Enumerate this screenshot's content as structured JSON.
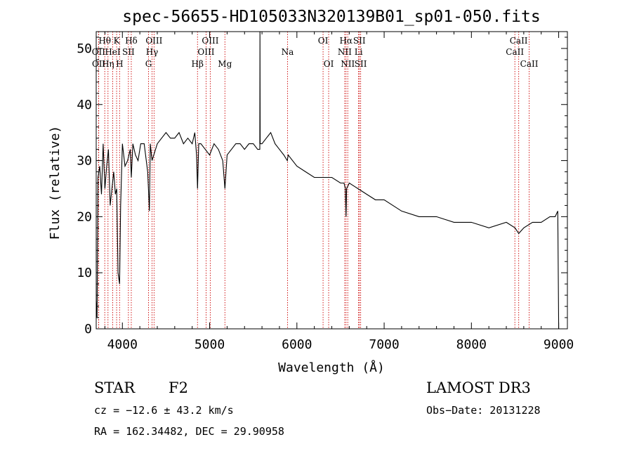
{
  "chart_data": {
    "type": "line",
    "title": "spec-56655-HD105033N320139B01_sp01-050.fits",
    "xlabel": "Wavelength (Å)",
    "ylabel": "Flux (relative)",
    "xlim": [
      3700,
      9100
    ],
    "ylim": [
      0,
      53
    ],
    "xticks": [
      4000,
      5000,
      6000,
      7000,
      8000,
      9000
    ],
    "yticks": [
      0,
      10,
      20,
      30,
      40,
      50
    ],
    "series": [
      {
        "name": "flux",
        "x": [
          3700,
          3710,
          3720,
          3740,
          3760,
          3780,
          3800,
          3820,
          3840,
          3860,
          3880,
          3900,
          3920,
          3935,
          3950,
          3968,
          3980,
          4000,
          4030,
          4060,
          4090,
          4102,
          4120,
          4150,
          4180,
          4210,
          4250,
          4290,
          4310,
          4320,
          4340,
          4360,
          4400,
          4450,
          4500,
          4550,
          4600,
          4650,
          4700,
          4750,
          4800,
          4830,
          4850,
          4861,
          4875,
          4900,
          4950,
          5000,
          5050,
          5100,
          5150,
          5175,
          5200,
          5250,
          5300,
          5350,
          5400,
          5450,
          5500,
          5550,
          5575,
          5577,
          5579,
          5600,
          5650,
          5700,
          5750,
          5800,
          5850,
          5890,
          5900,
          5950,
          6000,
          6100,
          6200,
          6300,
          6400,
          6500,
          6540,
          6555,
          6563,
          6570,
          6600,
          6700,
          6800,
          6900,
          7000,
          7200,
          7400,
          7600,
          7800,
          8000,
          8200,
          8400,
          8500,
          8542,
          8600,
          8700,
          8800,
          8900,
          8960,
          8990,
          9000
        ],
        "y": [
          5,
          2,
          27,
          29,
          24,
          33,
          25,
          29,
          32,
          22,
          25,
          28,
          24,
          25,
          10,
          8,
          22,
          33,
          29,
          30,
          32,
          27,
          33,
          31,
          30,
          33,
          33,
          28,
          21,
          33,
          30,
          31,
          33,
          34,
          35,
          34,
          34,
          35,
          33,
          34,
          33,
          35,
          31,
          25,
          33,
          33,
          32,
          31,
          33,
          32,
          30,
          25,
          31,
          32,
          33,
          33,
          32,
          33,
          33,
          32,
          32,
          53,
          33,
          33,
          34,
          35,
          33,
          32,
          31,
          30,
          31,
          30,
          29,
          28,
          27,
          27,
          27,
          26,
          26,
          25,
          20,
          25,
          26,
          25,
          24,
          23,
          23,
          21,
          20,
          20,
          19,
          19,
          18,
          19,
          18,
          17,
          18,
          19,
          19,
          20,
          20,
          21,
          0
        ]
      }
    ],
    "lines": [
      {
        "label": "Hθ",
        "x": 3798,
        "row": 1
      },
      {
        "label": "OII",
        "x": 3727,
        "row": 2
      },
      {
        "label": "OII",
        "x": 3729,
        "row": 3
      },
      {
        "label": "Hη",
        "x": 3835,
        "row": 3
      },
      {
        "label": "HeI",
        "x": 3889,
        "row": 2
      },
      {
        "label": "K",
        "x": 3934,
        "row": 1
      },
      {
        "label": "H",
        "x": 3968,
        "row": 3
      },
      {
        "label": "SII",
        "x": 4069,
        "row": 2
      },
      {
        "label": "Hδ",
        "x": 4102,
        "row": 1
      },
      {
        "label": "G",
        "x": 4300,
        "row": 3
      },
      {
        "label": "Hγ",
        "x": 4340,
        "row": 2
      },
      {
        "label": "OIII",
        "x": 4363,
        "row": 1
      },
      {
        "label": "Hβ",
        "x": 4861,
        "row": 3
      },
      {
        "label": "OIII",
        "x": 4959,
        "row": 2
      },
      {
        "label": "OIII",
        "x": 5007,
        "row": 1
      },
      {
        "label": "Mg",
        "x": 5175,
        "row": 3
      },
      {
        "label": "Na",
        "x": 5893,
        "row": 2
      },
      {
        "label": "OI",
        "x": 6300,
        "row": 1
      },
      {
        "label": "OI",
        "x": 6364,
        "row": 3
      },
      {
        "label": "NII",
        "x": 6548,
        "row": 2
      },
      {
        "label": "Hα",
        "x": 6563,
        "row": 1
      },
      {
        "label": "NII",
        "x": 6583,
        "row": 3
      },
      {
        "label": "Li",
        "x": 6707,
        "row": 2
      },
      {
        "label": "SII",
        "x": 6716,
        "row": 1
      },
      {
        "label": "SII",
        "x": 6731,
        "row": 3
      },
      {
        "label": "CaII",
        "x": 8498,
        "row": 2
      },
      {
        "label": "CaII",
        "x": 8542,
        "row": 1
      },
      {
        "label": "CaII",
        "x": 8662,
        "row": 3
      }
    ]
  },
  "info": {
    "object_class": "STAR",
    "subclass": "F2",
    "survey": "LAMOST DR3",
    "cz": "cz = −12.6 ± 43.2 km/s",
    "obs_date": "Obs−Date: 20131228",
    "coords": "RA = 162.34482, DEC =  29.90958"
  },
  "colors": {
    "line_marker": "#cc0000",
    "spectrum": "#000000"
  }
}
